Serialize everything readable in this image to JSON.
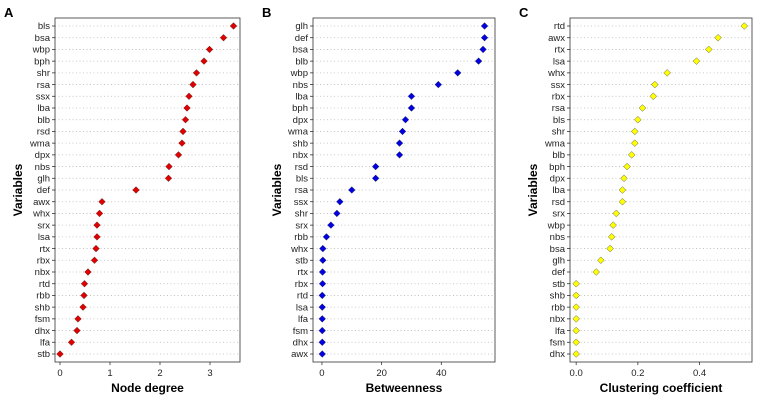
{
  "chart_data": [
    {
      "type": "scatter",
      "panel_label": "A",
      "xlabel": "Node degree",
      "ylabel": "Variables",
      "xlim": [
        -0.1,
        3.6
      ],
      "xticks": [
        "0",
        "1",
        "2",
        "3"
      ],
      "xtick_values": [
        0,
        1,
        2,
        3
      ],
      "color": "#e00000",
      "categories": [
        "bls",
        "bsa",
        "wbp",
        "bph",
        "shr",
        "rsa",
        "ssx",
        "lba",
        "blb",
        "rsd",
        "wma",
        "dpx",
        "nbs",
        "glh",
        "def",
        "awx",
        "whx",
        "srx",
        "lsa",
        "rtx",
        "rbx",
        "nbx",
        "rtd",
        "rbb",
        "shb",
        "fsm",
        "dhx",
        "lfa",
        "stb"
      ],
      "values": [
        3.47,
        3.27,
        2.99,
        2.88,
        2.73,
        2.66,
        2.58,
        2.54,
        2.51,
        2.46,
        2.44,
        2.37,
        2.18,
        2.17,
        1.52,
        0.84,
        0.79,
        0.74,
        0.74,
        0.72,
        0.69,
        0.56,
        0.49,
        0.48,
        0.46,
        0.36,
        0.34,
        0.23,
        0.0
      ]
    },
    {
      "type": "scatter",
      "panel_label": "B",
      "xlabel": "Betweenness",
      "ylabel": "Variables",
      "xlim": [
        -3,
        58
      ],
      "xticks": [
        "0",
        "20",
        "40"
      ],
      "xtick_values": [
        0,
        20,
        40
      ],
      "color": "#0000e0",
      "categories": [
        "glh",
        "def",
        "bsa",
        "blb",
        "wbp",
        "nbs",
        "lba",
        "bph",
        "dpx",
        "wma",
        "shb",
        "nbx",
        "rsd",
        "bls",
        "rsa",
        "ssx",
        "shr",
        "srx",
        "rbb",
        "whx",
        "stb",
        "rtx",
        "rbx",
        "rtd",
        "lsa",
        "lfa",
        "fsm",
        "dhx",
        "awx"
      ],
      "values": [
        54.5,
        54.5,
        54.0,
        52.5,
        45.5,
        39.0,
        30.0,
        30.0,
        28.0,
        27.0,
        26.0,
        26.0,
        18.0,
        18.0,
        10.0,
        6.0,
        5.0,
        3.0,
        1.5,
        0.3,
        0.3,
        0.2,
        0.2,
        0.1,
        0.1,
        0.1,
        0.1,
        0.1,
        0.1
      ]
    },
    {
      "type": "scatter",
      "panel_label": "C",
      "xlabel": "Clustering coefficient",
      "ylabel": "Variables",
      "xlim": [
        -0.02,
        0.57
      ],
      "xticks": [
        "0.0",
        "0.2",
        "0.4"
      ],
      "xtick_values": [
        0.0,
        0.2,
        0.4
      ],
      "color": "#ffff00",
      "categories": [
        "rtd",
        "awx",
        "rtx",
        "lsa",
        "whx",
        "ssx",
        "rbx",
        "rsa",
        "bls",
        "shr",
        "wma",
        "blb",
        "bph",
        "dpx",
        "lba",
        "rsd",
        "srx",
        "wbp",
        "nbs",
        "bsa",
        "glh",
        "def",
        "stb",
        "shb",
        "rbb",
        "nbx",
        "lfa",
        "fsm",
        "dhx"
      ],
      "values": [
        0.545,
        0.46,
        0.43,
        0.39,
        0.295,
        0.255,
        0.25,
        0.215,
        0.2,
        0.19,
        0.19,
        0.18,
        0.165,
        0.155,
        0.15,
        0.15,
        0.13,
        0.12,
        0.115,
        0.11,
        0.08,
        0.065,
        0.0,
        0.0,
        0.0,
        0.0,
        0.0,
        0.0,
        0.0
      ]
    }
  ]
}
